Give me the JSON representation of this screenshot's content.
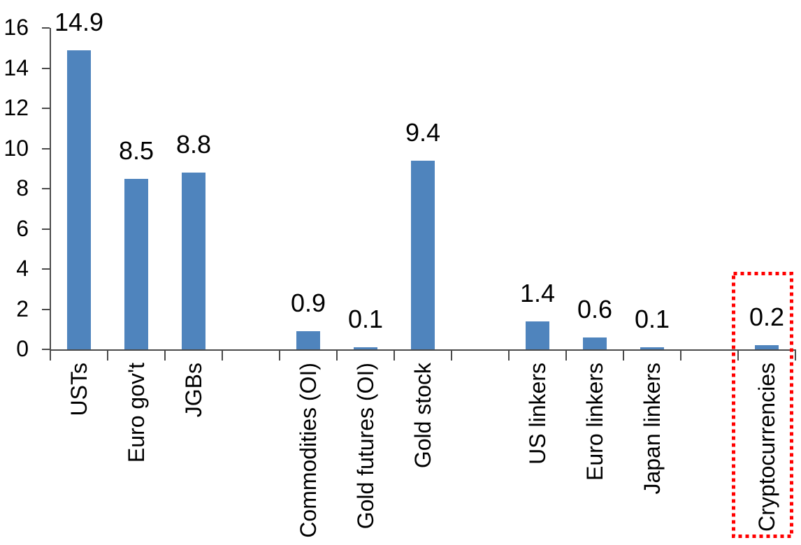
{
  "chart_data": {
    "type": "bar",
    "title": "",
    "xlabel": "",
    "ylabel": "",
    "categories": [
      "USTs",
      "Euro gov't",
      "JGBs",
      "Commodities (OI)",
      "Gold futures (OI)",
      "Gold stock",
      "US linkers",
      "Euro linkers",
      "Japan linkers",
      "Cryptocurrencies"
    ],
    "values": [
      14.9,
      8.5,
      8.8,
      0.9,
      0.1,
      9.4,
      1.4,
      0.6,
      0.1,
      0.2
    ],
    "data_labels": [
      "14.9",
      "8.5",
      "8.8",
      "0.9",
      "0.1",
      "9.4",
      "1.4",
      "0.6",
      "0.1",
      "0.2"
    ],
    "slot_indices": [
      0,
      1,
      2,
      4,
      5,
      6,
      8,
      9,
      10,
      12
    ],
    "n_slots": 13,
    "ylim": [
      0,
      16
    ],
    "y_ticks": [
      0,
      2,
      4,
      6,
      8,
      10,
      12,
      14,
      16
    ],
    "grid": false,
    "legend": "none",
    "colors": {
      "bar": "#4F84BD",
      "axis": "#4A4A4A",
      "text": "#000000",
      "highlight": "#FF0000"
    },
    "highlight": {
      "category": "Cryptocurrencies",
      "style": "red-dotted-rectangle"
    }
  }
}
